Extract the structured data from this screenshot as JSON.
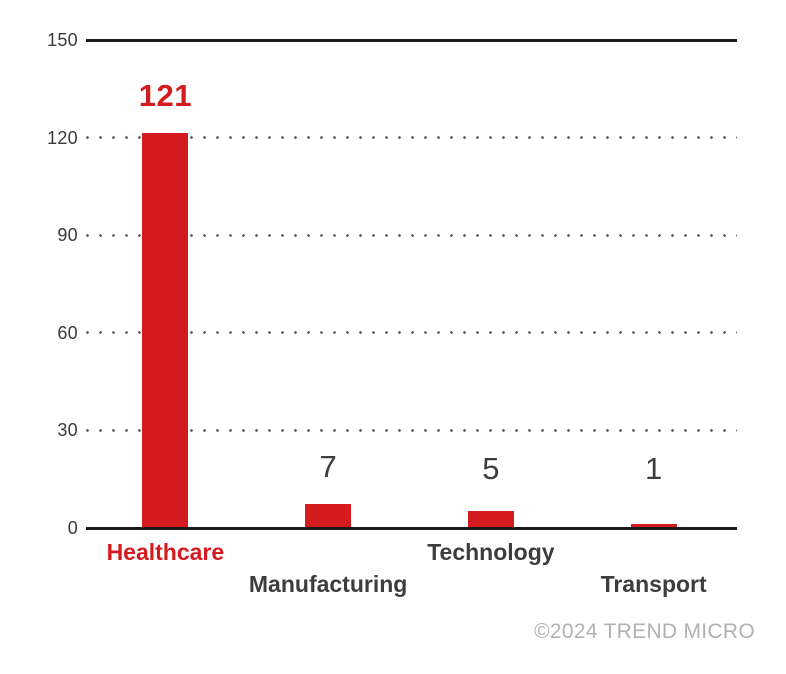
{
  "chart_data": {
    "type": "bar",
    "categories": [
      "Healthcare",
      "Manufacturing",
      "Technology",
      "Transport"
    ],
    "values": [
      121,
      7,
      5,
      1
    ],
    "value_labels": [
      "121",
      "7",
      "5",
      "1"
    ],
    "title": "",
    "xlabel": "",
    "ylabel": "",
    "ylim": [
      0,
      150
    ],
    "yticks": [
      0,
      30,
      60,
      90,
      120,
      150
    ],
    "grid": "dotted horizontal gridlines at 30, 60, 90, 120; solid black lines at 0 and 150",
    "legend": "none",
    "bar_color": "#d31b20",
    "highlight_category": "Healthcare",
    "highlight_color": "#d31b20",
    "label_color": "#3d3d3f",
    "tick_color": "#3a3a3c"
  },
  "footer": {
    "copyright": "©2024 TREND MICRO"
  }
}
